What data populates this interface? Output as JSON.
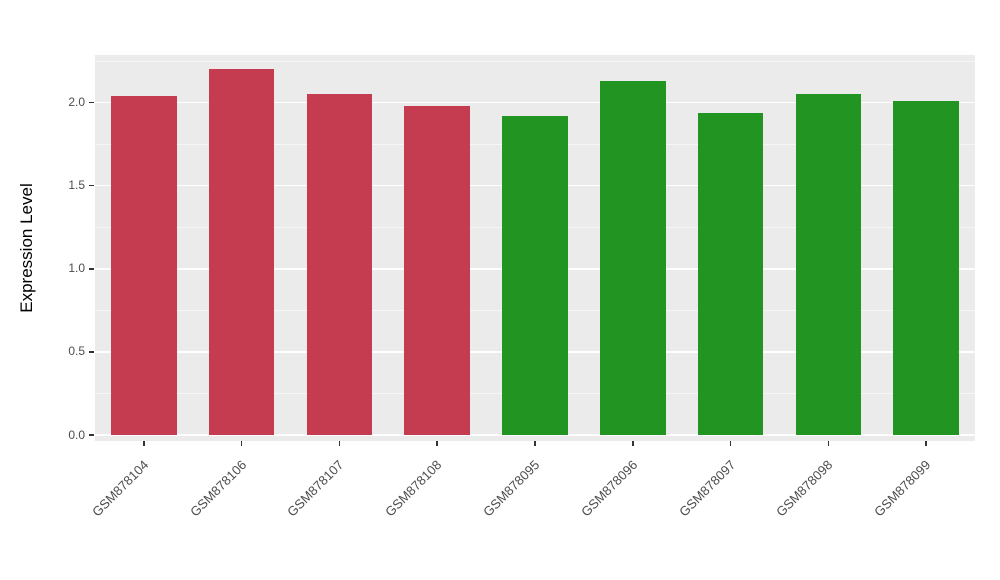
{
  "chart_data": {
    "type": "bar",
    "title": "",
    "xlabel": "",
    "ylabel": "Expression Level",
    "categories": [
      "GSM878104",
      "GSM878106",
      "GSM878107",
      "GSM878108",
      "GSM878095",
      "GSM878096",
      "GSM878097",
      "GSM878098",
      "GSM878099"
    ],
    "values": [
      2.04,
      2.2,
      2.05,
      1.98,
      1.92,
      2.13,
      1.94,
      2.05,
      2.01
    ],
    "bar_colors": [
      "#C53B4F",
      "#C53B4F",
      "#C53B4F",
      "#C53B4F",
      "#219421",
      "#219421",
      "#219421",
      "#219421",
      "#219421"
    ],
    "group_colors": {
      "red_group": "#C53B4F",
      "green_group": "#219421"
    },
    "yticks": [
      "0.0",
      "0.5",
      "1.0",
      "1.5",
      "2.0"
    ],
    "ylim": [
      0,
      2.25
    ],
    "grid": "on",
    "legend": "none",
    "panel_background": "#EBEBEB",
    "grid_color": "#FFFFFF",
    "figure_background": "#FFFFFF"
  }
}
